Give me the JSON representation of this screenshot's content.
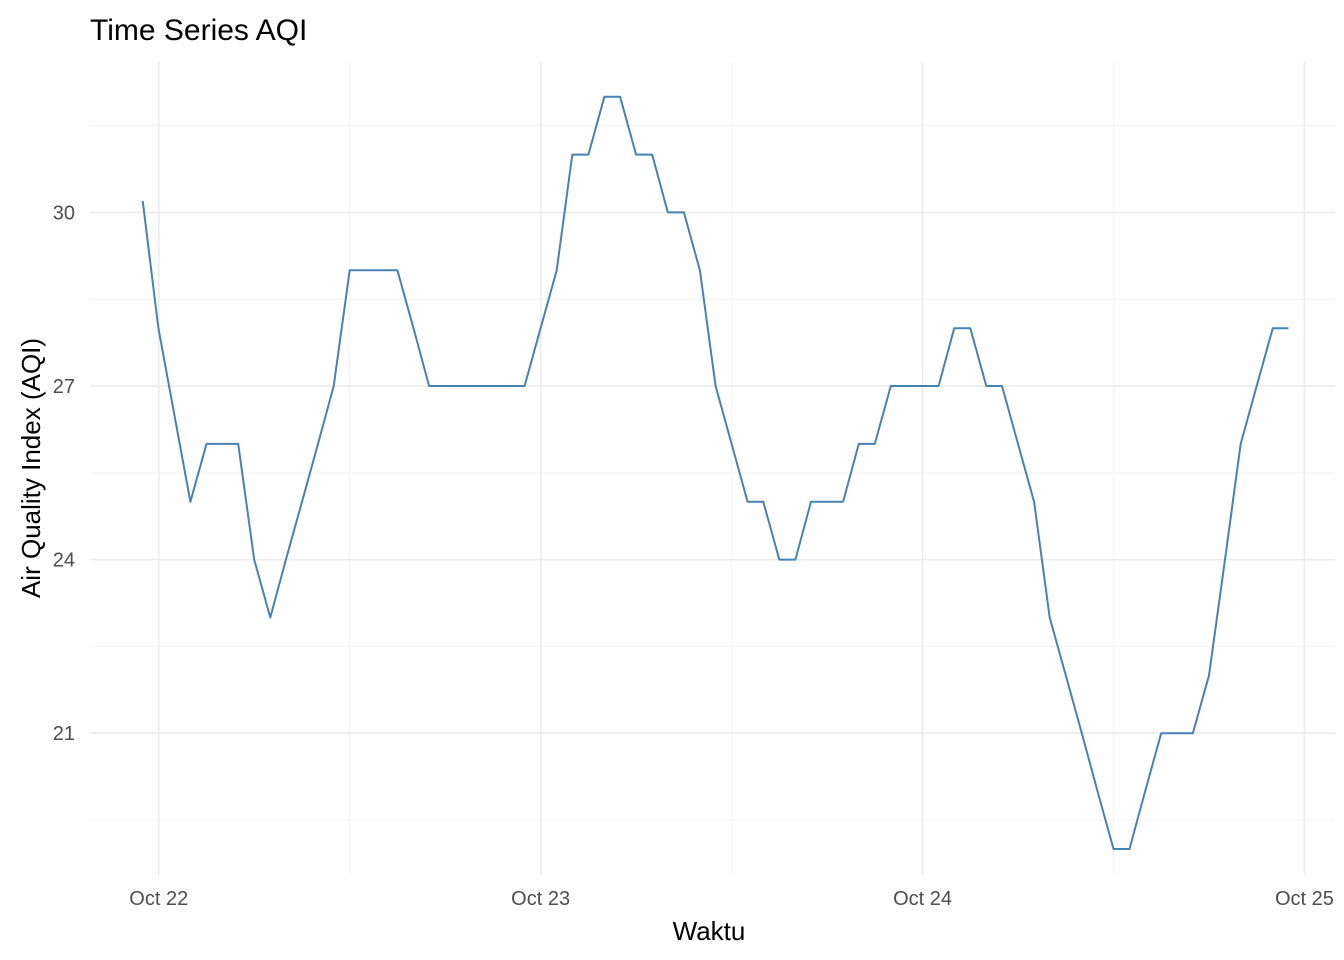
{
  "chart_data": {
    "type": "line",
    "title": "Time Series AQI",
    "xlabel": "Waktu",
    "ylabel": "Air Quality Index (AQI)",
    "x_unit": "days since Oct 22",
    "xlim": [
      -0.18,
      3.08
    ],
    "ylim": [
      18.55,
      32.6
    ],
    "x_ticks": [
      {
        "value": 0,
        "label": "Oct 22"
      },
      {
        "value": 1,
        "label": "Oct 23"
      },
      {
        "value": 2,
        "label": "Oct 24"
      },
      {
        "value": 3,
        "label": "Oct 25"
      }
    ],
    "x_minor_ticks": [
      0.5,
      1.5,
      2.5
    ],
    "y_ticks": [
      {
        "value": 21,
        "label": "21"
      },
      {
        "value": 24,
        "label": "24"
      },
      {
        "value": 27,
        "label": "27"
      },
      {
        "value": 30,
        "label": "30"
      }
    ],
    "y_minor_ticks": [
      19.5,
      22.5,
      25.5,
      28.5,
      31.5
    ],
    "grid": true,
    "line_color": "#4682b4",
    "series": [
      {
        "x": [
          -0.042,
          -0.001,
          0.083,
          0.125,
          0.208,
          0.25,
          0.292,
          0.333,
          0.375,
          0.417,
          0.458,
          0.5,
          0.542,
          0.583,
          0.625,
          0.667,
          0.708,
          0.75,
          0.792,
          0.833,
          0.875,
          0.917,
          0.958,
          1.0,
          1.042,
          1.083,
          1.125,
          1.167,
          1.208,
          1.25,
          1.292,
          1.333,
          1.375,
          1.417,
          1.458,
          1.5,
          1.542,
          1.583,
          1.625,
          1.667,
          1.708,
          1.75,
          1.792,
          1.833,
          1.875,
          1.917,
          1.958,
          2.0,
          2.042,
          2.083,
          2.125,
          2.167,
          2.208,
          2.25,
          2.292,
          2.333,
          2.375,
          2.417,
          2.458,
          2.5,
          2.542,
          2.583,
          2.625,
          2.667,
          2.708,
          2.75,
          2.792,
          2.833,
          2.875,
          2.917,
          2.958
        ],
        "y": [
          30.2,
          28.0,
          25.0,
          26.0,
          26.0,
          24.0,
          23.0,
          24.0,
          25.0,
          26.0,
          27.0,
          29.0,
          29.0,
          29.0,
          29.0,
          28.0,
          27.0,
          27.0,
          27.0,
          27.0,
          27.0,
          27.0,
          27.0,
          28.0,
          29.0,
          31.0,
          31.0,
          32.0,
          32.0,
          31.0,
          31.0,
          30.0,
          30.0,
          29.0,
          27.0,
          26.0,
          25.0,
          25.0,
          24.0,
          24.0,
          25.0,
          25.0,
          25.0,
          26.0,
          26.0,
          27.0,
          27.0,
          27.0,
          27.0,
          28.0,
          28.0,
          27.0,
          27.0,
          26.0,
          25.0,
          23.0,
          22.0,
          21.0,
          20.0,
          19.0,
          19.0,
          20.0,
          21.0,
          21.0,
          21.0,
          22.0,
          24.0,
          26.0,
          27.0,
          28.0,
          28.0
        ]
      }
    ]
  }
}
